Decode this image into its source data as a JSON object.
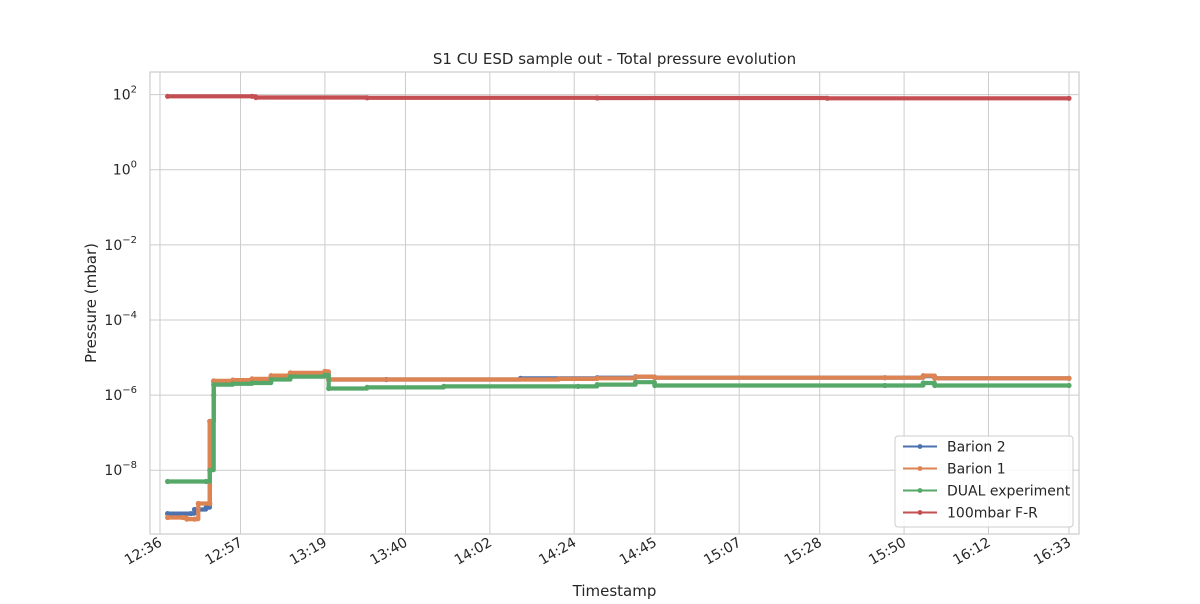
{
  "chart_data": {
    "type": "line",
    "title": "S1 CU ESD sample out - Total pressure evolution",
    "xlabel": "Timestamp",
    "ylabel": "Pressure (mbar)",
    "yscale": "log",
    "ylim": [
      2e-10,
      400
    ],
    "xlim": [
      "12:36",
      "16:33"
    ],
    "x_tick_labels": [
      "12:36",
      "12:57",
      "13:19",
      "13:40",
      "14:02",
      "14:24",
      "14:45",
      "15:07",
      "15:28",
      "15:50",
      "16:12",
      "16:33"
    ],
    "y_ticks": [
      {
        "base": "10",
        "exp": "2",
        "value": 100
      },
      {
        "base": "10",
        "exp": "0",
        "value": 1
      },
      {
        "base": "10",
        "exp": "−2",
        "value": 0.01
      },
      {
        "base": "10",
        "exp": "−4",
        "value": 0.0001
      },
      {
        "base": "10",
        "exp": "−6",
        "value": 1e-06
      },
      {
        "base": "10",
        "exp": "−8",
        "value": 1e-08
      }
    ],
    "grid": true,
    "legend_position": "lower-right",
    "series": [
      {
        "name": "Barion 2",
        "color": "#4c72b0",
        "points": [
          [
            "12:38",
            7e-10
          ],
          [
            "12:44",
            7e-10
          ],
          [
            "12:45",
            9e-10
          ],
          [
            "12:48",
            1e-09
          ],
          [
            "12:49",
            2e-07
          ],
          [
            "12:50",
            2.3e-06
          ],
          [
            "12:55",
            2.5e-06
          ],
          [
            "13:00",
            2.6e-06
          ],
          [
            "13:05",
            3.2e-06
          ],
          [
            "13:10",
            3.8e-06
          ],
          [
            "13:19",
            4.2e-06
          ],
          [
            "13:20",
            2.6e-06
          ],
          [
            "13:35",
            2.6e-06
          ],
          [
            "14:10",
            2.8e-06
          ],
          [
            "14:30",
            2.9e-06
          ],
          [
            "14:40",
            3.1e-06
          ],
          [
            "14:45",
            2.9e-06
          ],
          [
            "15:45",
            2.9e-06
          ],
          [
            "15:55",
            3.2e-06
          ],
          [
            "15:58",
            2.8e-06
          ],
          [
            "16:33",
            2.8e-06
          ]
        ]
      },
      {
        "name": "Barion 1",
        "color": "#dd8452",
        "points": [
          [
            "12:38",
            5.5e-10
          ],
          [
            "12:42",
            5.5e-10
          ],
          [
            "12:43",
            5e-10
          ],
          [
            "12:45",
            5e-10
          ],
          [
            "12:46",
            1.3e-09
          ],
          [
            "12:49",
            1.3e-09
          ],
          [
            "12:49",
            2e-07
          ],
          [
            "12:50",
            2.4e-06
          ],
          [
            "12:55",
            2.5e-06
          ],
          [
            "13:00",
            2.7e-06
          ],
          [
            "13:05",
            3.3e-06
          ],
          [
            "13:10",
            3.9e-06
          ],
          [
            "13:19",
            4.3e-06
          ],
          [
            "13:20",
            2.6e-06
          ],
          [
            "14:20",
            2.7e-06
          ],
          [
            "14:30",
            2.8e-06
          ],
          [
            "14:40",
            3.1e-06
          ],
          [
            "14:45",
            2.9e-06
          ],
          [
            "15:45",
            2.9e-06
          ],
          [
            "15:55",
            3.3e-06
          ],
          [
            "15:58",
            2.8e-06
          ],
          [
            "16:33",
            2.8e-06
          ]
        ]
      },
      {
        "name": "DUAL experiment",
        "color": "#55a868",
        "points": [
          [
            "12:38",
            5e-09
          ],
          [
            "12:48",
            5e-09
          ],
          [
            "12:49",
            1e-08
          ],
          [
            "12:50",
            1e-06
          ],
          [
            "12:50",
            1.9e-06
          ],
          [
            "12:55",
            2e-06
          ],
          [
            "13:00",
            2.1e-06
          ],
          [
            "13:05",
            2.6e-06
          ],
          [
            "13:10",
            3.1e-06
          ],
          [
            "13:19",
            3.4e-06
          ],
          [
            "13:20",
            1.5e-06
          ],
          [
            "13:30",
            1.6e-06
          ],
          [
            "13:50",
            1.7e-06
          ],
          [
            "14:25",
            1.7e-06
          ],
          [
            "14:30",
            1.9e-06
          ],
          [
            "14:40",
            2.2e-06
          ],
          [
            "14:45",
            1.8e-06
          ],
          [
            "15:45",
            1.8e-06
          ],
          [
            "15:55",
            2.1e-06
          ],
          [
            "15:58",
            1.8e-06
          ],
          [
            "16:33",
            1.8e-06
          ]
        ]
      },
      {
        "name": "100mbar F-R",
        "color": "#c44e52",
        "points": [
          [
            "12:38",
            90
          ],
          [
            "13:00",
            90
          ],
          [
            "13:01",
            84
          ],
          [
            "13:30",
            82
          ],
          [
            "14:30",
            81
          ],
          [
            "15:30",
            80
          ],
          [
            "16:33",
            80
          ]
        ]
      }
    ]
  }
}
